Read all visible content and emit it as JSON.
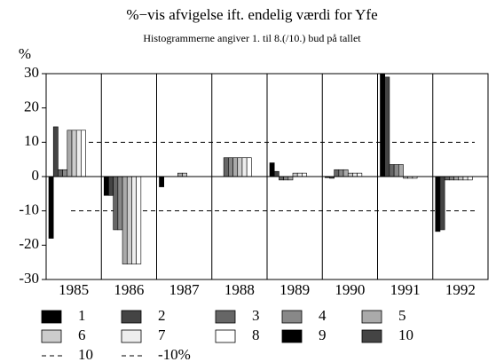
{
  "chart_data": {
    "type": "bar",
    "title": "%−vis afvigelse ift. endelig værdi for Yfe",
    "subtitle": "Histogrammerne angiver 1. til 8.(/10.) bud på tallet",
    "y_label": "%",
    "categories": [
      "1985",
      "1986",
      "1987",
      "1988",
      "1989",
      "1990",
      "1991",
      "1992"
    ],
    "series": [
      {
        "name": "1",
        "color": "#000000",
        "values": [
          -18,
          -5.5,
          -3,
          0,
          4,
          -0.3,
          30,
          -16
        ]
      },
      {
        "name": "2",
        "color": "#444444",
        "values": [
          14.5,
          -5.5,
          0,
          0,
          1.5,
          -0.5,
          29,
          -15.5
        ]
      },
      {
        "name": "3",
        "color": "#666666",
        "values": [
          2,
          -15.5,
          0,
          5.5,
          -1,
          2,
          3.5,
          -1
        ]
      },
      {
        "name": "4",
        "color": "#888888",
        "values": [
          2,
          -15.5,
          0,
          5.5,
          -1,
          2,
          3.5,
          -1
        ]
      },
      {
        "name": "5",
        "color": "#aaaaaa",
        "values": [
          13.5,
          -25.5,
          1,
          5.5,
          -1,
          2,
          3.5,
          -1
        ]
      },
      {
        "name": "6",
        "color": "#cccccc",
        "values": [
          13.5,
          -25.5,
          1,
          5.5,
          1,
          1,
          -0.5,
          -1
        ]
      },
      {
        "name": "7",
        "color": "#eeeeee",
        "values": [
          13.5,
          -25.5,
          0,
          5.5,
          1,
          1,
          -0.5,
          -1
        ]
      },
      {
        "name": "8",
        "color": "#ffffff",
        "values": [
          13.5,
          -25.5,
          0,
          5.5,
          1,
          1,
          -0.5,
          -1
        ]
      },
      {
        "name": "9",
        "color": "#000000",
        "values": [
          null,
          null,
          null,
          null,
          null,
          null,
          null,
          null
        ]
      },
      {
        "name": "10",
        "color": "#444444",
        "values": [
          null,
          null,
          null,
          null,
          null,
          null,
          null,
          null
        ]
      }
    ],
    "reference_lines": [
      {
        "label": "10",
        "value": 10
      },
      {
        "label": "-10%",
        "value": -10
      }
    ],
    "ylim": [
      -30,
      30
    ],
    "yticks": [
      -30,
      -20,
      -10,
      0,
      10,
      20,
      30
    ]
  }
}
